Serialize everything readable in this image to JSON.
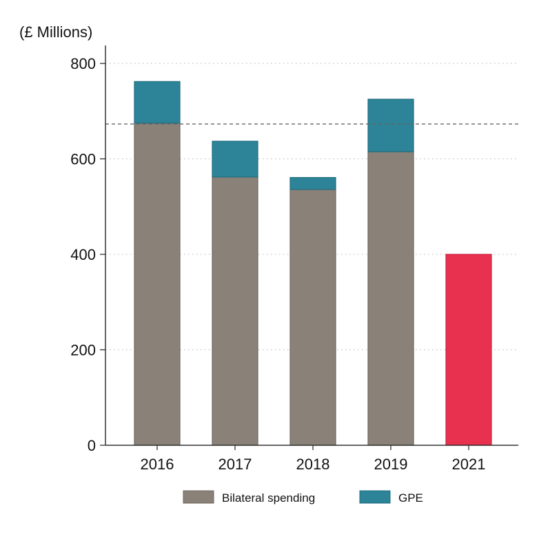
{
  "chart_data": {
    "type": "bar",
    "stacked": true,
    "unit_label": "(£ Millions)",
    "categories": [
      "2016",
      "2017",
      "2018",
      "2019",
      "2021"
    ],
    "series": [
      {
        "name": "Bilateral spending",
        "color": "#8a8178",
        "values": [
          675,
          562,
          536,
          615,
          null
        ]
      },
      {
        "name": "GPE",
        "color": "#2d8397",
        "values": [
          87,
          75,
          25,
          110,
          null
        ]
      },
      {
        "color": "#e8304f",
        "values": [
          null,
          null,
          null,
          null,
          400
        ]
      }
    ],
    "reference_line": {
      "value": 673,
      "style": "dashed"
    },
    "yticks": [
      0,
      200,
      400,
      600,
      800
    ],
    "ylim": [
      0,
      800
    ],
    "grid": "horizontal-dotted",
    "legend": {
      "placement": "bottom",
      "entries": [
        "Bilateral spending",
        "GPE"
      ]
    }
  }
}
